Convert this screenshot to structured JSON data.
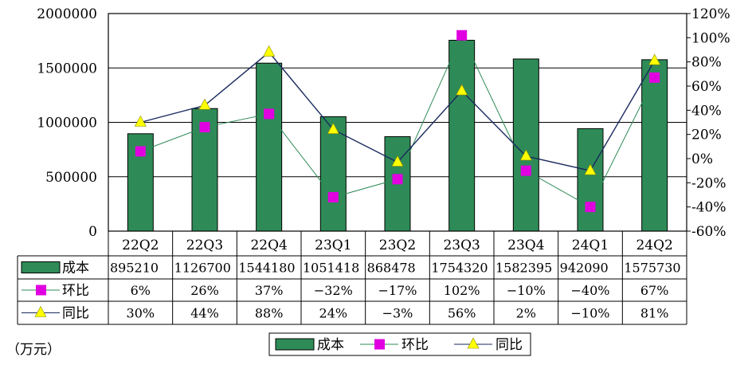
{
  "chart_data": {
    "type": "bar",
    "categories": [
      "22Q2",
      "22Q3",
      "22Q4",
      "23Q1",
      "23Q2",
      "23Q3",
      "23Q4",
      "24Q1",
      "24Q2"
    ],
    "unit": "（万元）",
    "y_left": {
      "ylim": [
        0,
        2000000
      ],
      "ticks": [
        "0",
        "500000",
        "1000000",
        "1500000",
        "2000000"
      ]
    },
    "y_right": {
      "ylim": [
        -60,
        120
      ],
      "ticks": [
        "-60%",
        "-40%",
        "-20%",
        "0%",
        "20%",
        "40%",
        "60%",
        "80%",
        "100%",
        "120%"
      ]
    },
    "grid": "horizontal",
    "legend_position": "bottom",
    "series": [
      {
        "name": "成本",
        "kind": "bar",
        "color": "#2e8b57",
        "values": [
          895210,
          1126700,
          1544180,
          1051418,
          868478,
          1754320,
          1582395,
          942090,
          1575730
        ],
        "labels": [
          "895210",
          "1126700",
          "1544180",
          "1051418",
          "868478",
          "1754320",
          "1582395",
          "942090",
          "1575730"
        ]
      },
      {
        "name": "环比",
        "kind": "line",
        "axis": "right",
        "marker": "square",
        "color": "#e000e0",
        "line_color": "#2e8b57",
        "values": [
          6,
          26,
          37,
          -32,
          -17,
          102,
          -10,
          -40,
          67
        ],
        "labels": [
          "6%",
          "26%",
          "37%",
          "−32%",
          "−17%",
          "102%",
          "−10%",
          "−40%",
          "67%"
        ]
      },
      {
        "name": "同比",
        "kind": "line",
        "axis": "right",
        "marker": "triangle",
        "color": "#ffff00",
        "line_color": "#1a2a5e",
        "values": [
          30,
          44,
          88,
          24,
          -3,
          56,
          2,
          -10,
          81
        ],
        "labels": [
          "30%",
          "44%",
          "88%",
          "24%",
          "−3%",
          "56%",
          "2%",
          "−10%",
          "81%"
        ]
      }
    ]
  }
}
